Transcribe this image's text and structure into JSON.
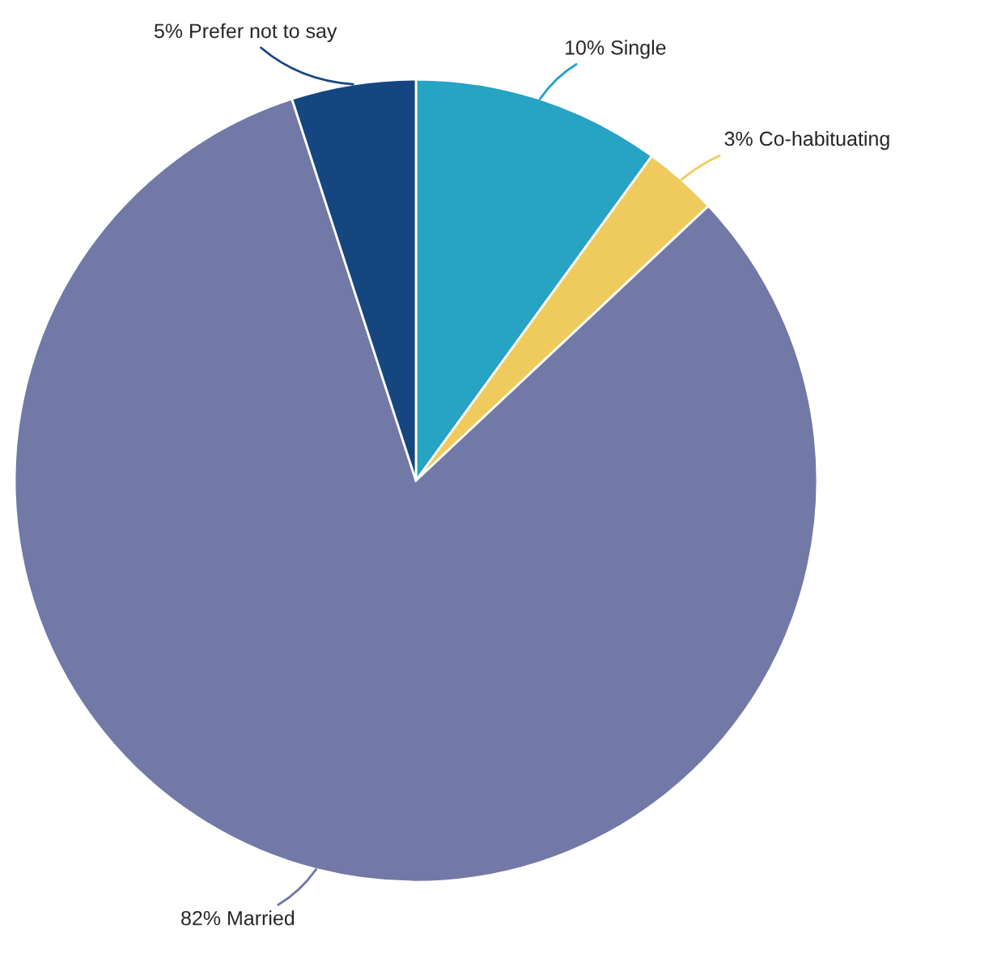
{
  "chart_data": {
    "type": "pie",
    "categories": [
      "10% Single",
      "3% Co-habituating",
      "82% Married",
      "5% Prefer not to say"
    ],
    "values": [
      10,
      3,
      82,
      5
    ],
    "colors": [
      "#27a3c4",
      "#eecb5c",
      "#7279a7",
      "#15467f"
    ],
    "legend": false
  }
}
